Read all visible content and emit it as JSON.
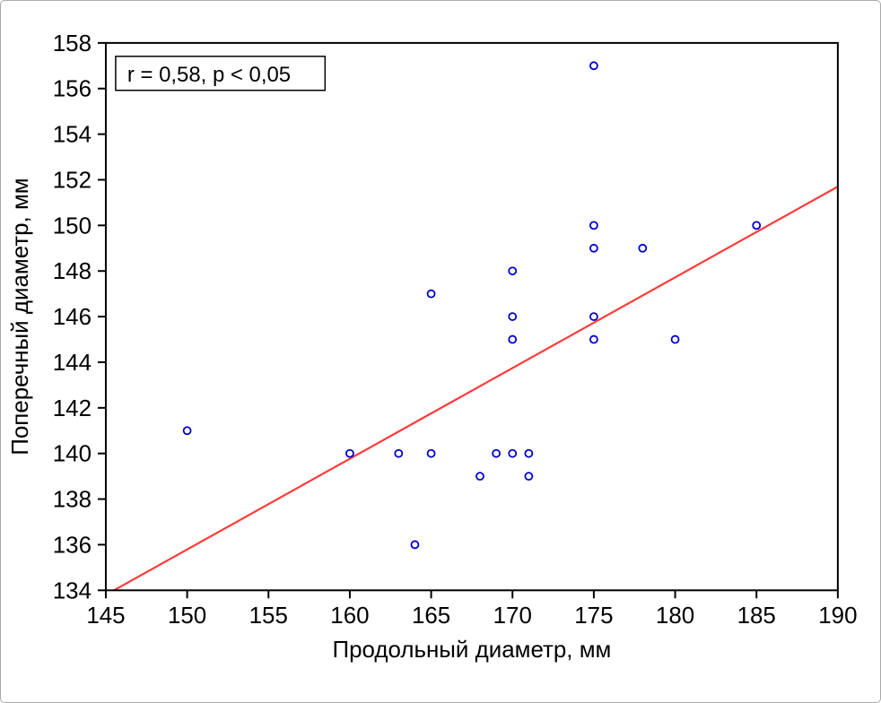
{
  "figure": {
    "background": "#ffffff",
    "border_color": "#a9a9a9"
  },
  "chart_data": {
    "type": "scatter",
    "title": "",
    "xlabel": "Продольный диаметр, мм",
    "ylabel": "Поперечный диаметр, мм",
    "annotation": "r = 0,58, p < 0,05",
    "xlim": [
      145,
      190
    ],
    "ylim": [
      134,
      158
    ],
    "xticks": [
      145,
      150,
      155,
      160,
      165,
      170,
      175,
      180,
      185,
      190
    ],
    "yticks": [
      134,
      136,
      138,
      140,
      142,
      144,
      146,
      148,
      150,
      152,
      154,
      156,
      158
    ],
    "grid": false,
    "legend": null,
    "point_color": "#0000cc",
    "points": [
      {
        "x": 150,
        "y": 141
      },
      {
        "x": 160,
        "y": 140
      },
      {
        "x": 163,
        "y": 140
      },
      {
        "x": 164,
        "y": 136
      },
      {
        "x": 165,
        "y": 140
      },
      {
        "x": 165,
        "y": 147
      },
      {
        "x": 168,
        "y": 139
      },
      {
        "x": 169,
        "y": 140
      },
      {
        "x": 170,
        "y": 140
      },
      {
        "x": 170,
        "y": 145
      },
      {
        "x": 170,
        "y": 146
      },
      {
        "x": 170,
        "y": 148
      },
      {
        "x": 171,
        "y": 139
      },
      {
        "x": 171,
        "y": 140
      },
      {
        "x": 175,
        "y": 145
      },
      {
        "x": 175,
        "y": 146
      },
      {
        "x": 175,
        "y": 149
      },
      {
        "x": 175,
        "y": 150
      },
      {
        "x": 175,
        "y": 157
      },
      {
        "x": 178,
        "y": 149
      },
      {
        "x": 180,
        "y": 145
      },
      {
        "x": 185,
        "y": 150
      }
    ],
    "regression_line": {
      "x1": 145.5,
      "y1": 134.0,
      "x2": 190.0,
      "y2": 151.7,
      "color": "#ff3a3a"
    }
  }
}
